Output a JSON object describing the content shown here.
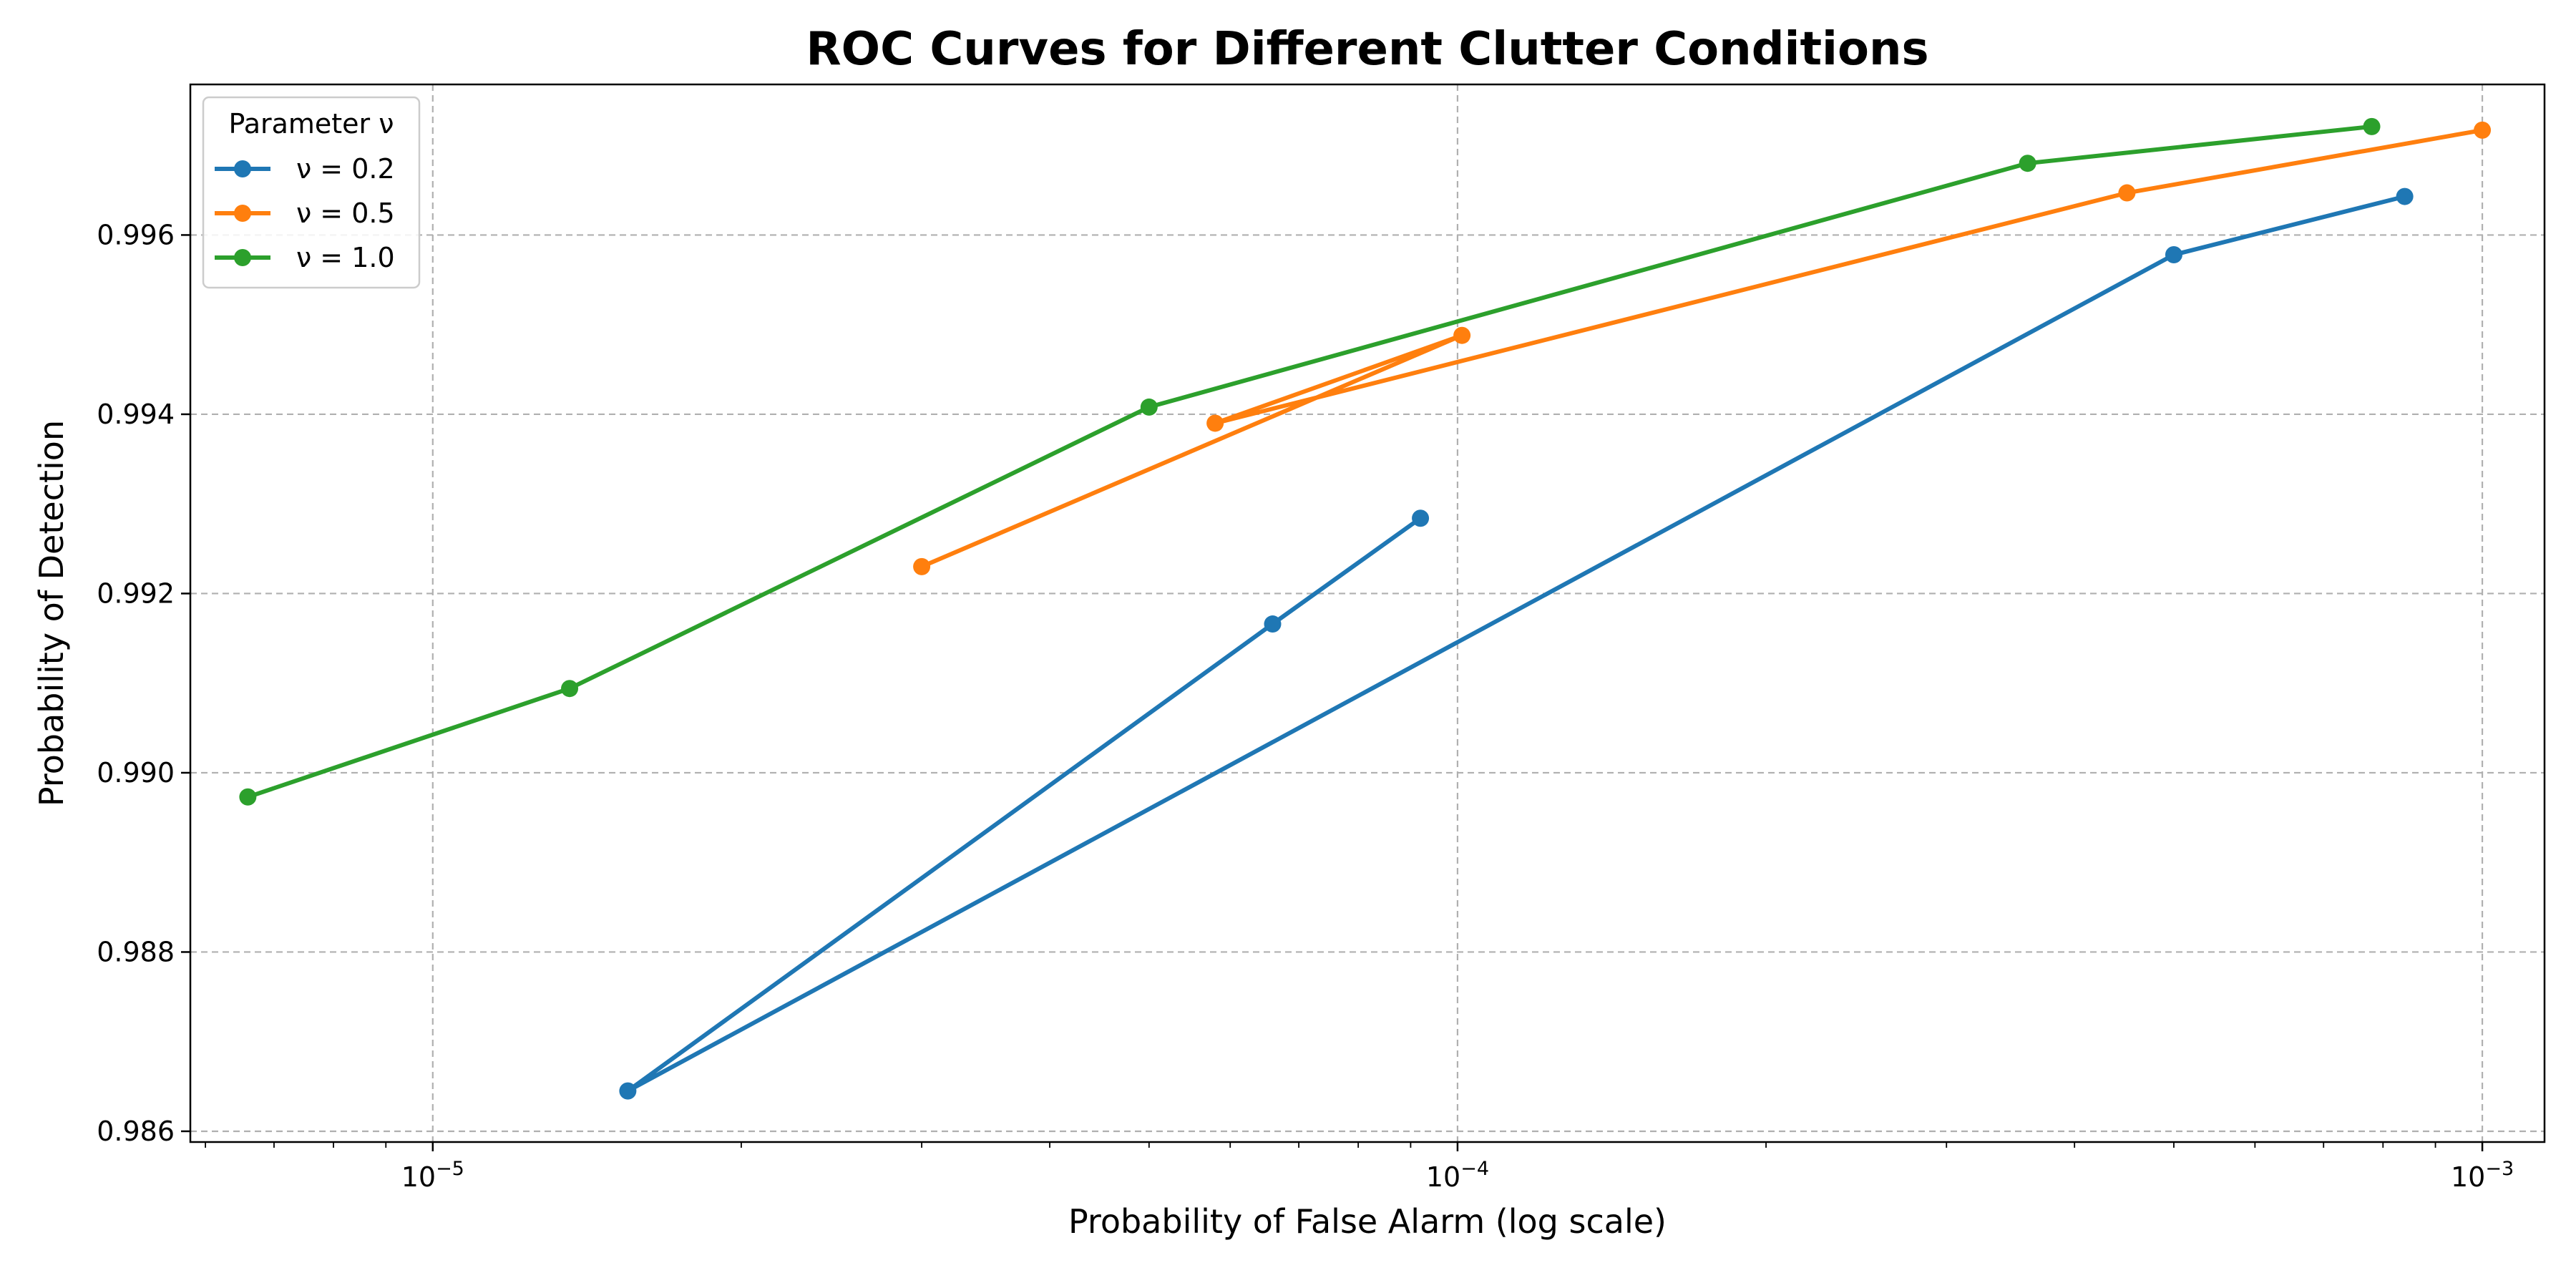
{
  "chart_data": {
    "type": "line",
    "title": "ROC Curves for Different Clutter Conditions",
    "xlabel": "Probability of False Alarm (log scale)",
    "ylabel": "Probability of Detection",
    "x_scale": "log",
    "xlim": [
      5.8e-06,
      0.00115
    ],
    "ylim": [
      0.98588,
      0.99768
    ],
    "x_ticks": [
      1e-05,
      0.0001,
      0.001
    ],
    "x_tick_labels": [
      {
        "base": "10",
        "exp": "−5"
      },
      {
        "base": "10",
        "exp": "−4"
      },
      {
        "base": "10",
        "exp": "−3"
      }
    ],
    "y_ticks": [
      0.986,
      0.988,
      0.99,
      0.992,
      0.994,
      0.996
    ],
    "y_tick_labels": [
      "0.986",
      "0.988",
      "0.990",
      "0.992",
      "0.994",
      "0.996"
    ],
    "grid": true,
    "legend": {
      "title": "Parameter ν",
      "placement": "upper-left"
    },
    "series": [
      {
        "name": "ν = 0.2",
        "color": "#1f77b4",
        "x": [
          9.2e-05,
          6.6e-05,
          1.55e-05,
          0.0005,
          0.00084
        ],
        "y": [
          0.99284,
          0.99166,
          0.98645,
          0.99578,
          0.99643
        ]
      },
      {
        "name": "ν = 0.5",
        "color": "#ff7f0e",
        "x": [
          3e-05,
          0.000101,
          5.8e-05,
          0.00045,
          0.001
        ],
        "y": [
          0.9923,
          0.99488,
          0.9939,
          0.99647,
          0.99717
        ]
      },
      {
        "name": "ν = 1.0",
        "color": "#2ca02c",
        "x": [
          6.6e-06,
          1.36e-05,
          5e-05,
          0.00036,
          0.00078
        ],
        "y": [
          0.98973,
          0.99094,
          0.99408,
          0.9968,
          0.99721
        ]
      }
    ]
  }
}
